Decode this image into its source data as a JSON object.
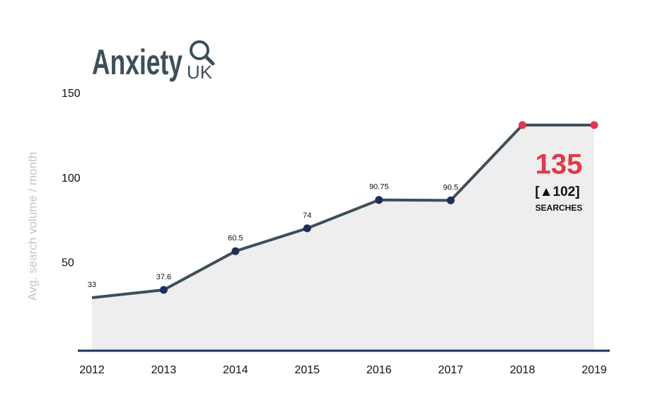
{
  "logo": {
    "title": "Anxiety",
    "subtitle": "UK"
  },
  "chart_data": {
    "type": "line",
    "y_axis_label": "Avg. search volume / month",
    "categories": [
      "2012",
      "2013",
      "2014",
      "2015",
      "2016",
      "2017",
      "2018",
      "2019"
    ],
    "values": [
      33,
      37.6,
      60.5,
      74,
      90.75,
      90.5,
      135,
      135
    ],
    "value_labels": [
      "33",
      "37.6",
      "60.5",
      "74",
      "90.75",
      "90.5",
      null,
      null
    ],
    "color": "#3d5059",
    "marker_colors": [
      "#1f2d5c",
      "#1f2d5c",
      "#1f2d5c",
      "#1f2d5c",
      "#1f2d5c",
      "#1f2d5c",
      "#e0394a",
      "#e0394a"
    ],
    "area_color": "#eeeeef",
    "ylim": [
      0,
      150
    ],
    "yticks": [
      50,
      100,
      150
    ],
    "annotation": {
      "value": "135",
      "change": "[▲102]",
      "unit": "SEARCHES"
    }
  }
}
